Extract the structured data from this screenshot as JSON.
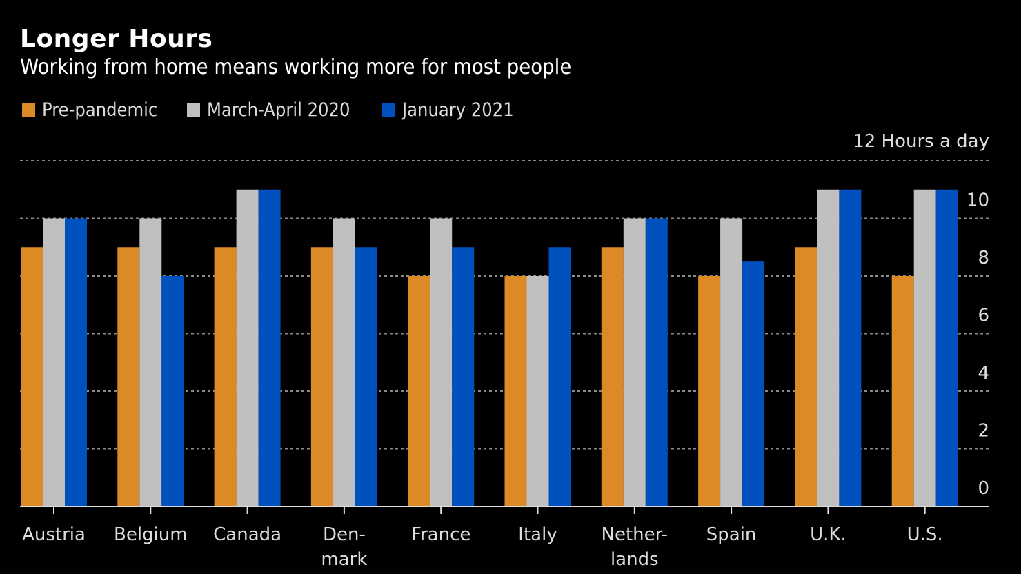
{
  "chart_data": {
    "type": "bar",
    "title": "Longer Hours",
    "subtitle": "Working from home means working more for most people",
    "xlabel": "",
    "ylabel": "",
    "unit_label": "12 Hours a day",
    "categories": [
      [
        "Austria"
      ],
      [
        "Belgium"
      ],
      [
        "Canada"
      ],
      [
        "Den-",
        "mark"
      ],
      [
        "France"
      ],
      [
        "Italy"
      ],
      [
        "Nether-",
        "lands"
      ],
      [
        "Spain"
      ],
      [
        "U.K."
      ],
      [
        "U.S."
      ]
    ],
    "series": [
      {
        "name": "Pre-pandemic",
        "color": "#DC8A26",
        "values": [
          9,
          9,
          9,
          9,
          8,
          8,
          9,
          8,
          9,
          8
        ]
      },
      {
        "name": "March-April 2020",
        "color": "#C0C0C0",
        "values": [
          10,
          10,
          11,
          10,
          10,
          8,
          10,
          10,
          11,
          11
        ]
      },
      {
        "name": "January 2021",
        "color": "#0050BE",
        "values": [
          10,
          8,
          11,
          9,
          9,
          9,
          10,
          8.5,
          11,
          11
        ]
      }
    ],
    "ylim": [
      0,
      12
    ],
    "yticks": [
      0,
      2,
      4,
      6,
      8,
      10
    ],
    "grid": true,
    "legend_position": "top-left",
    "y_axis_side": "right"
  }
}
